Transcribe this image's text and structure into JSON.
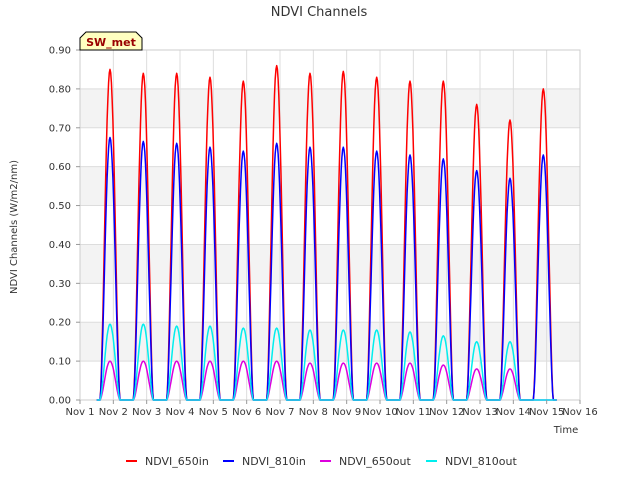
{
  "chart_data": {
    "type": "line",
    "title": "NDVI Channels",
    "xlabel": "Time",
    "ylabel": "NDVI Channels (W/m2/nm)",
    "badge": "SW_met",
    "ylim": [
      0.0,
      0.9
    ],
    "xlim": [
      1,
      16
    ],
    "y_ticks": [
      "0.00",
      "0.10",
      "0.20",
      "0.30",
      "0.40",
      "0.50",
      "0.60",
      "0.70",
      "0.80",
      "0.90"
    ],
    "x_ticks": [
      "Nov 1",
      "Nov 2",
      "Nov 3",
      "Nov 4",
      "Nov 5",
      "Nov 6",
      "Nov 7",
      "Nov 8",
      "Nov 9",
      "Nov 10",
      "Nov 11",
      "Nov 12",
      "Nov 13",
      "Nov 14",
      "Nov 15",
      "Nov 16"
    ],
    "x_tick_values": [
      1,
      2,
      3,
      4,
      5,
      6,
      7,
      8,
      9,
      10,
      11,
      12,
      13,
      14,
      15,
      16
    ],
    "peak_days": [
      1.9,
      2.9,
      3.9,
      4.9,
      5.9,
      6.9,
      7.9,
      8.9,
      9.9,
      10.9,
      11.9,
      12.9,
      13.9,
      14.9
    ],
    "grid": true,
    "legend_position": "bottom",
    "series": [
      {
        "name": "NDVI_650in",
        "color": "#ff0000",
        "peaks": [
          0.85,
          0.84,
          0.84,
          0.83,
          0.82,
          0.86,
          0.84,
          0.845,
          0.83,
          0.82,
          0.82,
          0.76,
          0.72,
          0.8
        ]
      },
      {
        "name": "NDVI_810in",
        "color": "#0000ff",
        "peaks": [
          0.675,
          0.665,
          0.66,
          0.65,
          0.64,
          0.66,
          0.65,
          0.65,
          0.64,
          0.63,
          0.62,
          0.59,
          0.57,
          0.63
        ]
      },
      {
        "name": "NDVI_650out",
        "color": "#dd00dd",
        "peaks": [
          0.1,
          0.1,
          0.1,
          0.1,
          0.1,
          0.1,
          0.095,
          0.095,
          0.095,
          0.095,
          0.09,
          0.08,
          0.08,
          0.0
        ]
      },
      {
        "name": "NDVI_810out",
        "color": "#00eeee",
        "peaks": [
          0.195,
          0.195,
          0.19,
          0.19,
          0.185,
          0.185,
          0.18,
          0.18,
          0.18,
          0.175,
          0.165,
          0.15,
          0.15,
          0.0
        ]
      }
    ]
  }
}
